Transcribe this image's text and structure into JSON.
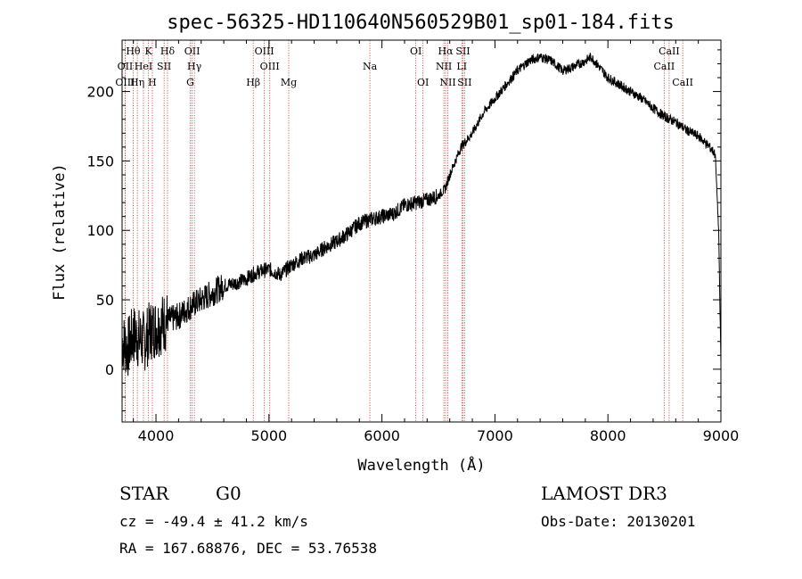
{
  "chart_data": {
    "type": "line",
    "title": "spec-56325-HD110640N560529B01_sp01-184.fits",
    "xlabel": "Wavelength (Å)",
    "ylabel": "Flux (relative)",
    "xlim": [
      3700,
      9000
    ],
    "ylim": [
      -38,
      237
    ],
    "x_ticks": [
      4000,
      5000,
      6000,
      7000,
      8000,
      9000
    ],
    "y_ticks": [
      0,
      50,
      100,
      150,
      200
    ],
    "series": [
      {
        "name": "flux",
        "x": [
          3700,
          3750,
          3800,
          3850,
          3900,
          3950,
          4000,
          4100,
          4200,
          4300,
          4400,
          4500,
          4600,
          4700,
          4800,
          4850,
          4900,
          5000,
          5100,
          5200,
          5300,
          5400,
          5500,
          5600,
          5700,
          5800,
          5900,
          6000,
          6100,
          6200,
          6300,
          6400,
          6500,
          6560,
          6600,
          6700,
          6800,
          6900,
          7000,
          7100,
          7200,
          7300,
          7400,
          7500,
          7600,
          7700,
          7800,
          7850,
          7900,
          8000,
          8100,
          8200,
          8300,
          8400,
          8500,
          8600,
          8700,
          8800,
          8900,
          8950,
          8980,
          9000
        ],
        "y": [
          20,
          15,
          25,
          22,
          20,
          28,
          30,
          35,
          38,
          45,
          50,
          55,
          60,
          62,
          65,
          68,
          70,
          72,
          68,
          75,
          80,
          82,
          88,
          92,
          98,
          105,
          108,
          110,
          112,
          118,
          120,
          122,
          125,
          130,
          140,
          160,
          170,
          185,
          195,
          205,
          215,
          222,
          225,
          222,
          215,
          218,
          222,
          225,
          220,
          210,
          205,
          200,
          195,
          188,
          182,
          178,
          172,
          168,
          160,
          155,
          100,
          5
        ]
      }
    ],
    "spectral_lines": [
      {
        "label": "Hθ",
        "wavelength": 3798,
        "row": 1
      },
      {
        "label": "K",
        "wavelength": 3934,
        "row": 1
      },
      {
        "label": "Hδ",
        "wavelength": 4102,
        "row": 1
      },
      {
        "label": "OII",
        "wavelength": 4320,
        "row": 1
      },
      {
        "label": "OIII",
        "wavelength": 4959,
        "row": 1
      },
      {
        "label": "OI",
        "wavelength": 6300,
        "row": 1
      },
      {
        "label": "Hα",
        "wavelength": 6563,
        "row": 1
      },
      {
        "label": "SII",
        "wavelength": 6717,
        "row": 1
      },
      {
        "label": "CaII",
        "wavelength": 8542,
        "row": 1
      },
      {
        "label": "OII",
        "wavelength": 3727,
        "row": 2
      },
      {
        "label": "HeI",
        "wavelength": 3889,
        "row": 2
      },
      {
        "label": "SII",
        "wavelength": 4072,
        "row": 2
      },
      {
        "label": "Hγ",
        "wavelength": 4340,
        "row": 2
      },
      {
        "label": "OIII",
        "wavelength": 5007,
        "row": 2
      },
      {
        "label": "Na",
        "wavelength": 5893,
        "row": 2
      },
      {
        "label": "NII",
        "wavelength": 6548,
        "row": 2
      },
      {
        "label": "LI",
        "wavelength": 6707,
        "row": 2
      },
      {
        "label": "CaII",
        "wavelength": 8498,
        "row": 2
      },
      {
        "label": "OIII",
        "wavelength": 3727,
        "row": 3
      },
      {
        "label": "Hη",
        "wavelength": 3835,
        "row": 3
      },
      {
        "label": "H",
        "wavelength": 3968,
        "row": 3
      },
      {
        "label": "G",
        "wavelength": 4304,
        "row": 3
      },
      {
        "label": "Hβ",
        "wavelength": 4861,
        "row": 3
      },
      {
        "label": "Mg",
        "wavelength": 5175,
        "row": 3
      },
      {
        "label": "OI",
        "wavelength": 6363,
        "row": 3
      },
      {
        "label": "NII",
        "wavelength": 6583,
        "row": 3
      },
      {
        "label": "SII",
        "wavelength": 6731,
        "row": 3
      },
      {
        "label": "CaII",
        "wavelength": 8662,
        "row": 3
      }
    ]
  },
  "footer": {
    "object_class": "STAR",
    "subclass": "G0",
    "survey": "LAMOST DR3",
    "redshift": "cz = -49.4 ± 41.2 km/s",
    "obs_date": "Obs-Date: 20130201",
    "coords": "RA = 167.68876, DEC =  53.76538"
  }
}
